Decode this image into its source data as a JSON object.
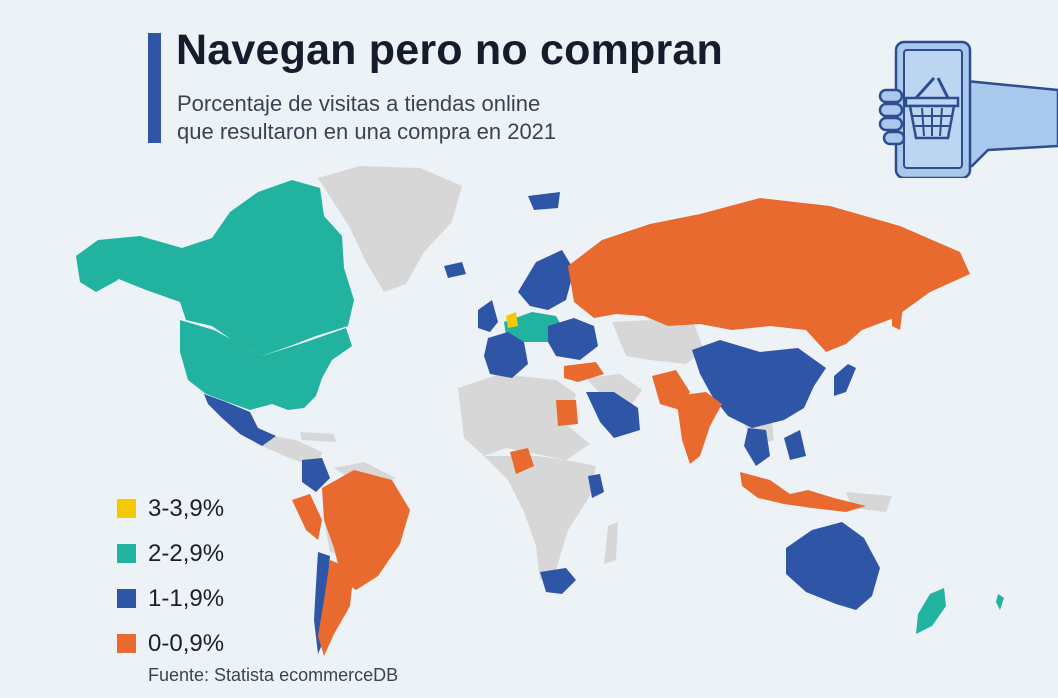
{
  "header": {
    "title": "Navegan pero no compran",
    "subtitle_line1": "Porcentaje de visitas a tiendas online",
    "subtitle_line2": "que resultaron en una compra en 2021"
  },
  "icon": "phone-shopping-basket-icon",
  "colors": {
    "background": "#edf2f7",
    "no_data": "#d7d7d7",
    "cat_3": "#f5c800",
    "cat_2": "#21b3a0",
    "cat_1": "#2f55a6",
    "cat_0": "#e86a2f",
    "accent": "#2f55a6"
  },
  "legend": [
    {
      "label": "3-3,9%",
      "color": "#f5c800"
    },
    {
      "label": "2-2,9%",
      "color": "#21b3a0"
    },
    {
      "label": "1-1,9%",
      "color": "#2f55a6"
    },
    {
      "label": "0-0,9%",
      "color": "#e86a2f"
    }
  ],
  "source": "Fuente: Statista ecommerceDB"
}
